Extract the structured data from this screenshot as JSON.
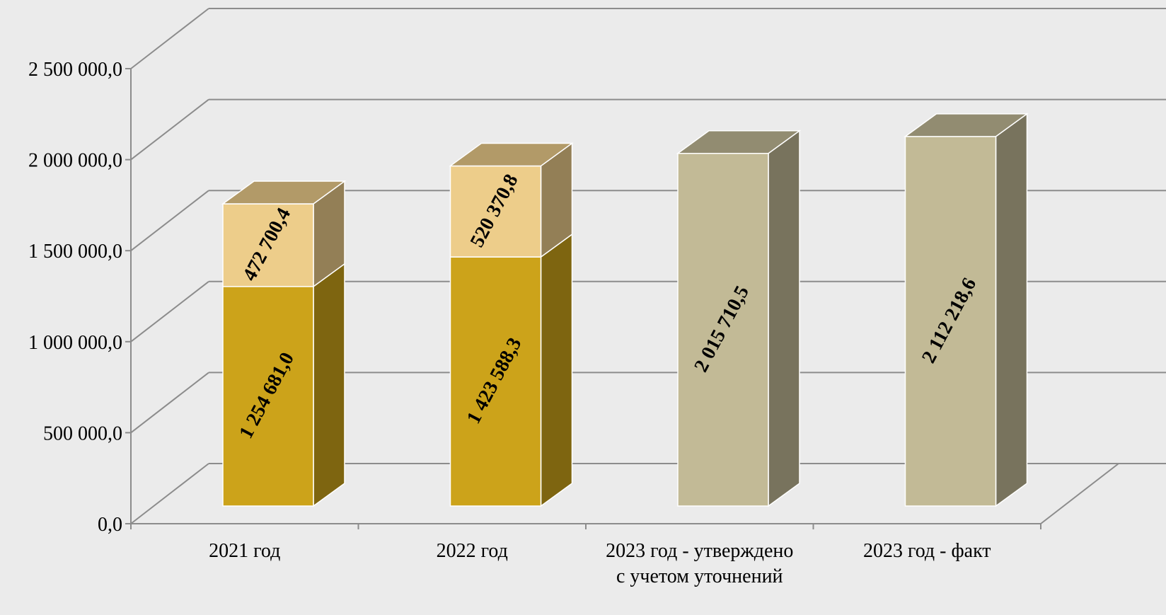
{
  "chart_data": {
    "type": "bar",
    "stacked": true,
    "three_d": true,
    "categories": [
      [
        "2021 год"
      ],
      [
        "2022 год"
      ],
      [
        "2023 год - утверждено",
        "с учетом уточнений"
      ],
      [
        "2023 год - факт"
      ]
    ],
    "series": [
      {
        "values": [
          1254681.0,
          1423588.3,
          null,
          null
        ],
        "labels": [
          "1 254 681,0",
          "1 423 588,3",
          "",
          ""
        ],
        "color": "#cca31a"
      },
      {
        "values": [
          472700.4,
          520370.8,
          null,
          null
        ],
        "labels": [
          "472 700,4",
          "520 370,8",
          "",
          ""
        ],
        "color": "#edcd8a"
      },
      {
        "values": [
          null,
          null,
          2015710.5,
          2112218.6
        ],
        "labels": [
          "",
          "",
          "2 015 710,5",
          "2 112 218,6"
        ],
        "color": "#c2ba96"
      }
    ],
    "y_ticks": [
      "0,0",
      "500 000,0",
      "1 000 000,0",
      "1 500 000,0",
      "2 000 000,0",
      "2 500 000,0"
    ],
    "ylim": [
      0,
      2500000
    ],
    "grid": true,
    "legend": "none",
    "background": "#ebebeb"
  }
}
